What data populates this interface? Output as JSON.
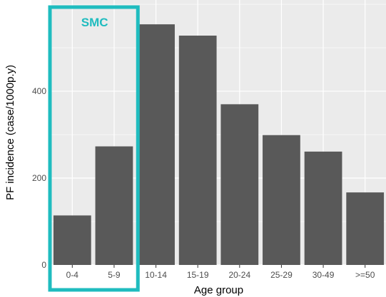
{
  "chart_data": {
    "type": "bar",
    "title": "",
    "xlabel": "Age group",
    "ylabel": "PF incidence (case/1000p.y)",
    "categories": [
      "0-4",
      "5-9",
      "10-14",
      "15-19",
      "20-24",
      "25-29",
      "30-49",
      ">=50"
    ],
    "values": [
      114,
      273,
      554,
      528,
      370,
      299,
      261,
      167
    ],
    "ylim": [
      0,
      610
    ],
    "yticks": [
      0,
      200,
      400
    ],
    "grid": true,
    "legend": "none",
    "colors": {
      "bar": "#595959",
      "panel": "#ebebeb",
      "grid": "#ffffff",
      "highlight": "#1fbcbf"
    },
    "annotation": {
      "text": "SMC",
      "covers_categories": [
        "0-4",
        "5-9"
      ]
    }
  }
}
